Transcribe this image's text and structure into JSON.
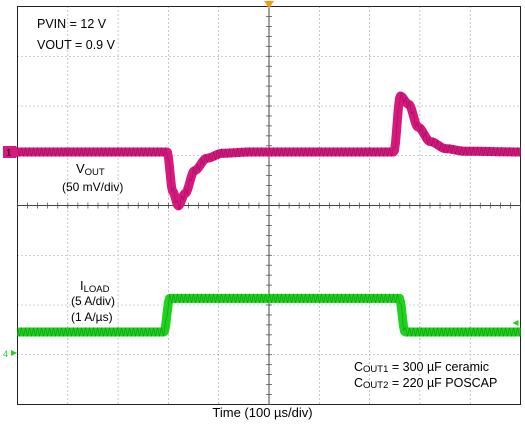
{
  "chart_data": {
    "type": "line",
    "xlabel": "Time (100 µs/div)",
    "x_divisions": 10,
    "y_divisions": 8,
    "annotations": {
      "pvin": "PVIN = 12 V",
      "vout": "VOUT = 0.9 V",
      "cout1_prefix": "C",
      "cout1_sub": "OUT1",
      "cout1_value": " = 300 µF ceramic",
      "cout2_prefix": "C",
      "cout2_sub": "OUT2",
      "cout2_value": " = 220 µF POSCAP"
    },
    "series": [
      {
        "name_main": "V",
        "name_sub": "OUT",
        "scale": "(50 mV/div)",
        "channel_marker": "1",
        "color": "#d6197a",
        "x_div": [
          0,
          4.82,
          5.0,
          5.18,
          5.4,
          5.7,
          6.1,
          6.6,
          7.5,
          12.12,
          12.33,
          12.6,
          12.9,
          13.3,
          13.8,
          14.4,
          16.2
        ],
        "y_div": [
          0,
          0,
          -0.95,
          -1.3,
          -1.0,
          -0.45,
          -0.15,
          -0.03,
          0,
          0,
          1.35,
          1.15,
          0.6,
          0.25,
          0.08,
          0.02,
          0
        ]
      },
      {
        "name_main": "I",
        "name_sub": "LOAD",
        "scale": "(5 A/div)",
        "slew": "(1 A/µs)",
        "channel_marker": "4",
        "color": "#1ed21e",
        "x_div": [
          0,
          4.72,
          4.9,
          12.3,
          12.48,
          16.2
        ],
        "y_div": [
          0,
          0,
          0.9,
          0.9,
          0,
          0
        ]
      }
    ]
  }
}
